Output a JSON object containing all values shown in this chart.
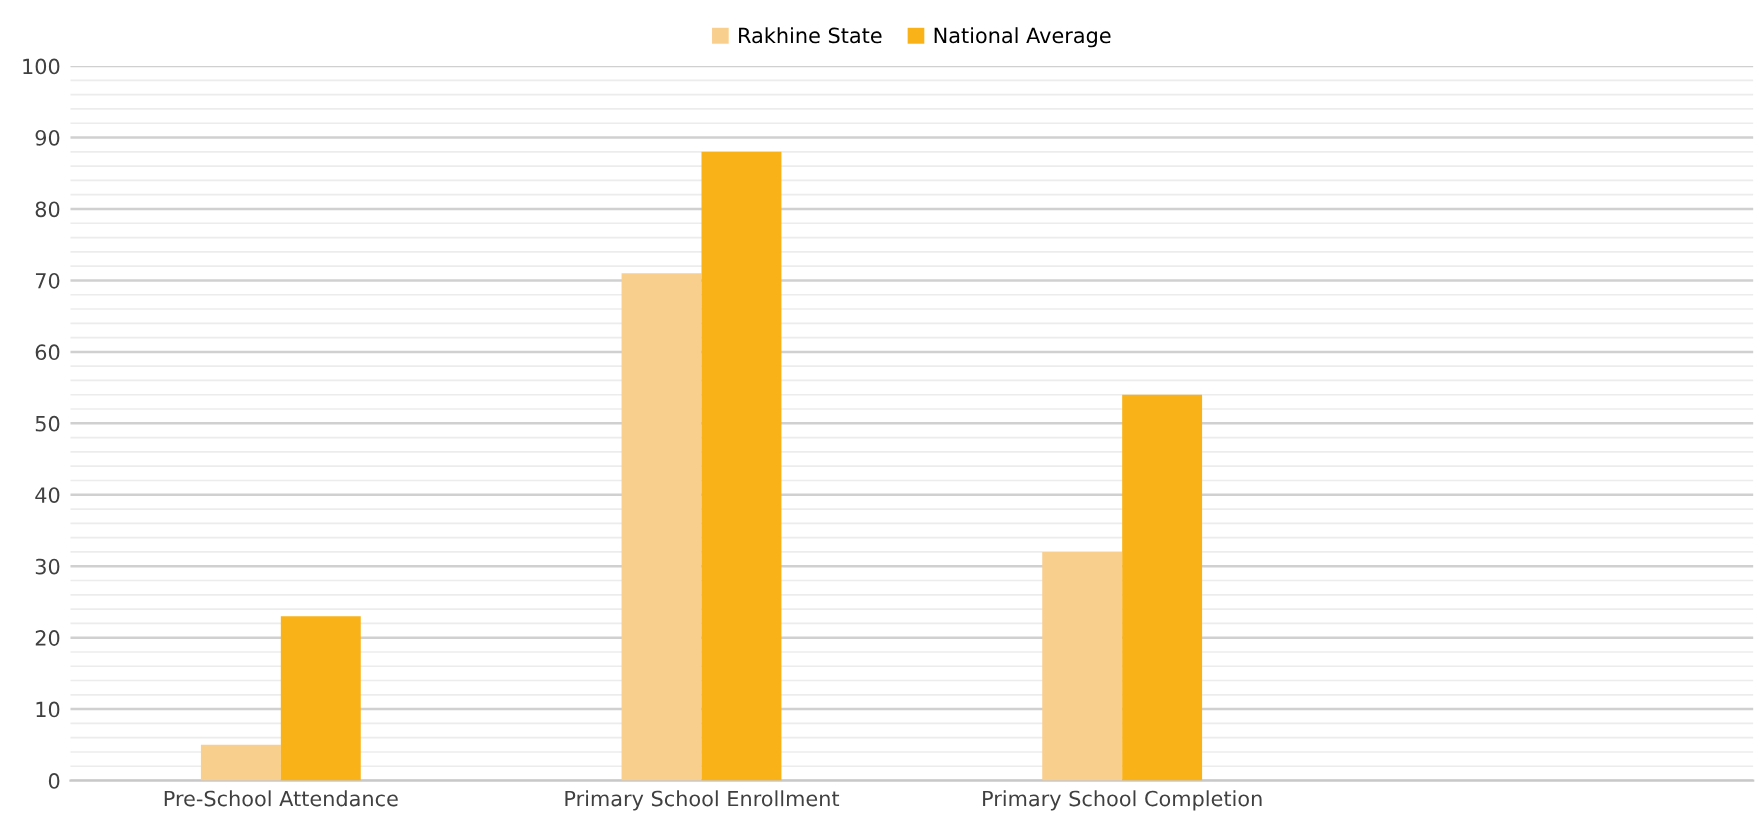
{
  "chart_data": {
    "type": "bar",
    "categories": [
      "Pre-School Attendance",
      "Primary School Enrollment",
      "Primary School Completion",
      null
    ],
    "series": [
      {
        "name": "Rakhine State",
        "color": "#f9cf8e",
        "values": [
          5,
          71,
          32,
          null
        ]
      },
      {
        "name": "National Average",
        "color": "#fab219",
        "values": [
          23,
          88,
          54,
          null
        ]
      }
    ],
    "ylim": [
      0,
      100
    ],
    "yticks": [
      0,
      10,
      20,
      30,
      40,
      50,
      60,
      70,
      80,
      90,
      100
    ],
    "grid": "y",
    "legend": "top"
  }
}
